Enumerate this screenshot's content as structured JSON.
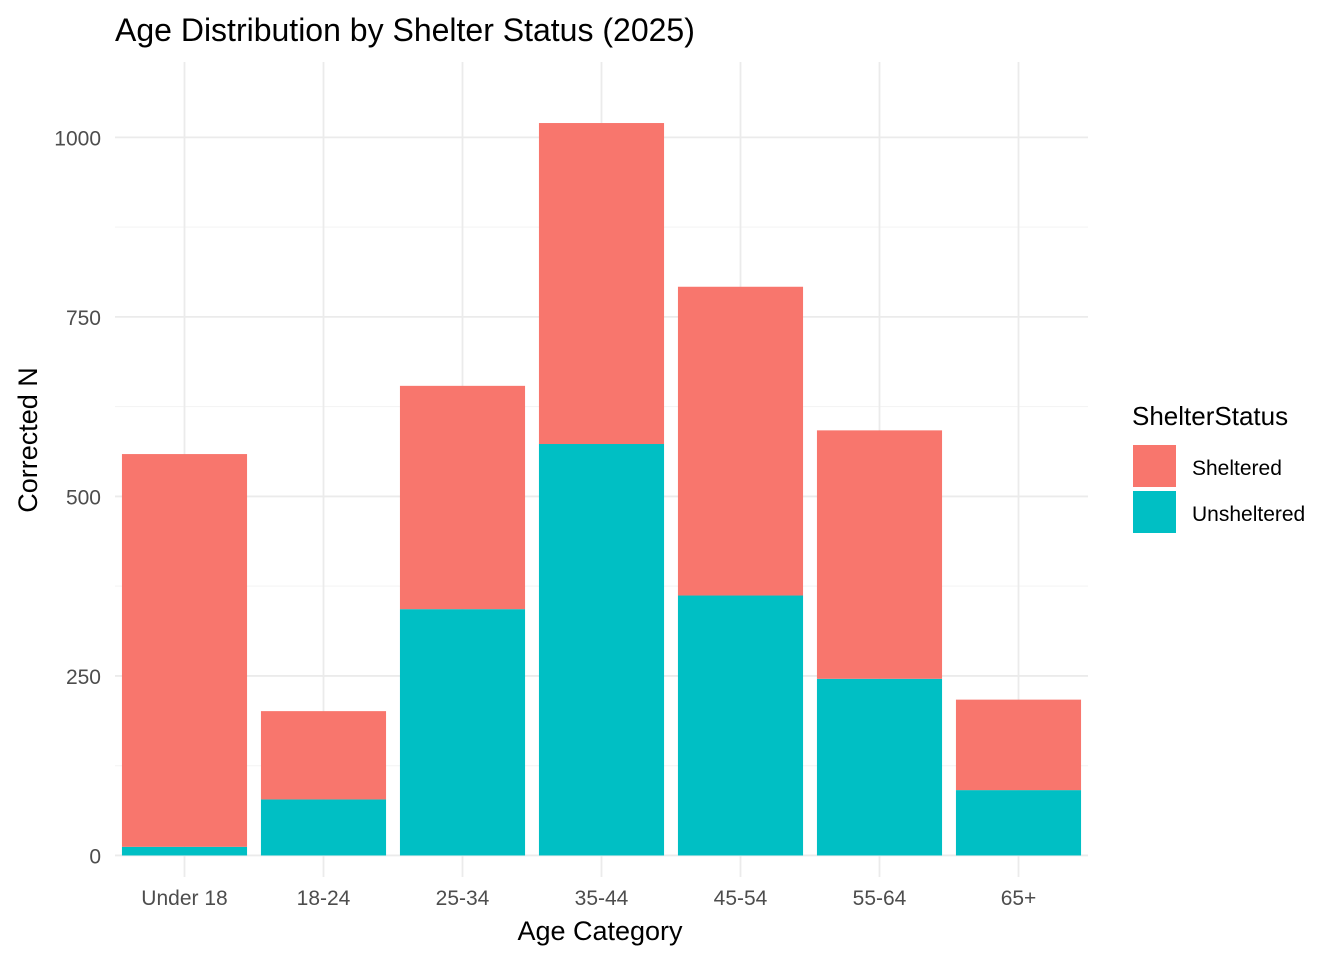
{
  "chart_data": {
    "type": "bar",
    "stacked": true,
    "title": "Age Distribution by Shelter Status (2025)",
    "xlabel": "Age Category",
    "ylabel": "Corrected N",
    "categories": [
      "Under 18",
      "18-24",
      "25-34",
      "35-44",
      "45-54",
      "55-64",
      "65+"
    ],
    "series": [
      {
        "name": "Unsheltered",
        "color": "#00BFC4",
        "values": [
          12,
          78,
          343,
          573,
          362,
          246,
          91
        ]
      },
      {
        "name": "Sheltered",
        "color": "#F8766D",
        "values": [
          547,
          123,
          311,
          447,
          430,
          346,
          126
        ]
      }
    ],
    "ylim": [
      -30,
      1105
    ],
    "yticks": [
      0,
      250,
      500,
      750,
      1000
    ],
    "y_minor_ticks": [
      125,
      375,
      625,
      875
    ],
    "grid": true,
    "legend": {
      "title": "ShelterStatus",
      "position": "right",
      "entries": [
        {
          "label": "Sheltered",
          "color": "#F8766D"
        },
        {
          "label": "Unsheltered",
          "color": "#00BFC4"
        }
      ]
    }
  }
}
